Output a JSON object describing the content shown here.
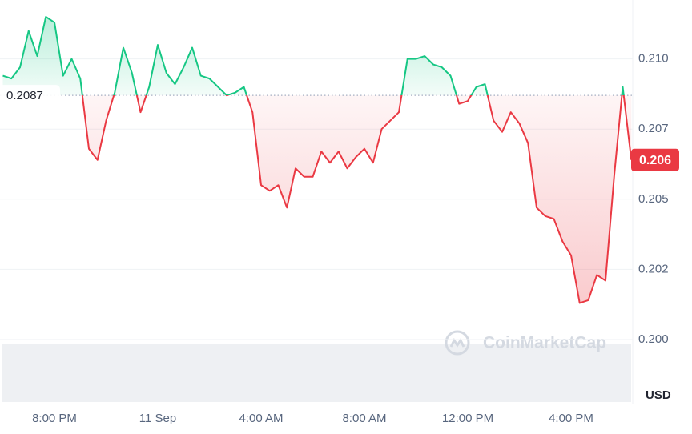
{
  "chart_data": {
    "type": "line",
    "categories": [
      null,
      null,
      null,
      null,
      null,
      null,
      "8:00 PM",
      null,
      null,
      null,
      null,
      null,
      null,
      null,
      null,
      null,
      null,
      null,
      "11 Sep",
      null,
      null,
      null,
      null,
      null,
      null,
      null,
      null,
      null,
      null,
      null,
      "4:00 AM",
      null,
      null,
      null,
      null,
      null,
      null,
      null,
      null,
      null,
      null,
      null,
      "8:00 AM",
      null,
      null,
      null,
      null,
      null,
      null,
      null,
      null,
      null,
      null,
      null,
      "12:00 PM",
      null,
      null,
      null,
      null,
      null,
      null,
      null,
      null,
      null,
      null,
      null,
      "4:00 PM",
      null,
      null,
      null,
      null,
      null,
      null,
      null
    ],
    "values": [
      0.2094,
      0.2093,
      0.2097,
      0.211,
      0.2101,
      0.2115,
      0.2113,
      0.2094,
      0.21,
      0.2093,
      0.2068,
      0.2064,
      0.2078,
      0.2088,
      0.2104,
      0.2095,
      0.2081,
      0.209,
      0.2105,
      0.2095,
      0.2091,
      0.2097,
      0.2104,
      0.2094,
      0.2093,
      0.209,
      0.2087,
      0.2088,
      0.209,
      0.2081,
      0.2055,
      0.2053,
      0.2055,
      0.2047,
      0.2061,
      0.2058,
      0.2058,
      0.2067,
      0.2063,
      0.2067,
      0.2061,
      0.2065,
      0.2068,
      0.2063,
      0.2075,
      0.2078,
      0.2081,
      0.21,
      0.21,
      0.2101,
      0.2098,
      0.2097,
      0.2094,
      0.2084,
      0.2085,
      0.209,
      0.2091,
      0.2078,
      0.2074,
      0.2081,
      0.2077,
      0.207,
      0.2047,
      0.2044,
      0.2043,
      0.2035,
      0.203,
      0.2013,
      0.2014,
      0.2023,
      0.2021,
      0.2058,
      0.209,
      0.2064
    ],
    "value_labels": [
      null,
      null,
      null,
      null,
      null,
      null,
      null,
      null,
      null,
      null,
      null,
      null,
      null,
      null,
      null,
      null,
      null,
      null,
      null,
      null,
      null,
      null,
      null,
      null,
      null,
      null,
      null,
      null,
      null,
      null,
      null,
      null,
      null,
      null,
      null,
      null,
      null,
      null,
      null,
      null,
      null,
      null,
      null,
      null,
      null,
      null,
      null,
      null,
      null,
      null,
      null,
      null,
      null,
      null,
      null,
      null,
      null,
      null,
      null,
      null,
      null,
      null,
      null,
      null,
      null,
      null,
      null,
      null,
      null,
      null,
      null,
      null,
      null,
      "0.206"
    ],
    "baseline": 0.2087,
    "ylim": [
      0.2,
      0.2121
    ],
    "yticks": [
      {
        "value": 0.2,
        "label": "0.200"
      },
      {
        "value": 0.2025,
        "label": "0.202"
      },
      {
        "value": 0.205,
        "label": "0.205"
      },
      {
        "value": 0.2075,
        "label": "0.207"
      },
      {
        "value": 0.21,
        "label": "0.210"
      }
    ],
    "grid": true,
    "up_color": "#16c784",
    "down_color": "#ea3943",
    "unit": "USD",
    "watermark": "CoinMarketCap"
  }
}
